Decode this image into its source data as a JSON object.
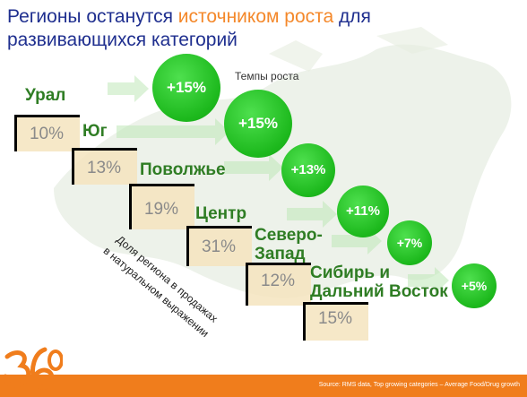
{
  "title": {
    "part1": "Регионы останутся ",
    "highlight": "источником роста",
    "part2": " для развивающихся категорий"
  },
  "legend_label": "Темпы роста",
  "rotated_label": {
    "line1": "Доля региона в продажах",
    "line2": "в натуральном выражении"
  },
  "regions": [
    {
      "name": "Урал",
      "share": "10%",
      "growth": "+15%"
    },
    {
      "name": "Юг",
      "share": "13%",
      "growth": "+15%"
    },
    {
      "name": "Поволжье",
      "share": "19%",
      "growth": "+13%"
    },
    {
      "name": "Центр",
      "share": "31%",
      "growth": "+11%"
    },
    {
      "name_line1": "Северо-",
      "name_line2": "Запад",
      "share": "12%",
      "growth": "+7%"
    },
    {
      "name_line1": "Сибирь и",
      "name_line2": "Дальний Восток",
      "share": "15%",
      "growth": "+5%"
    }
  ],
  "footer": {
    "source": "Source: RMS data, Top growing categories – Average Food/Drug growth"
  },
  "logo_text": "360",
  "colors": {
    "title": "#1f2f8f",
    "highlight": "#f4882a",
    "region_text": "#2f7d24",
    "bubble": "#1cb81c",
    "footer": "#f07d1c"
  }
}
